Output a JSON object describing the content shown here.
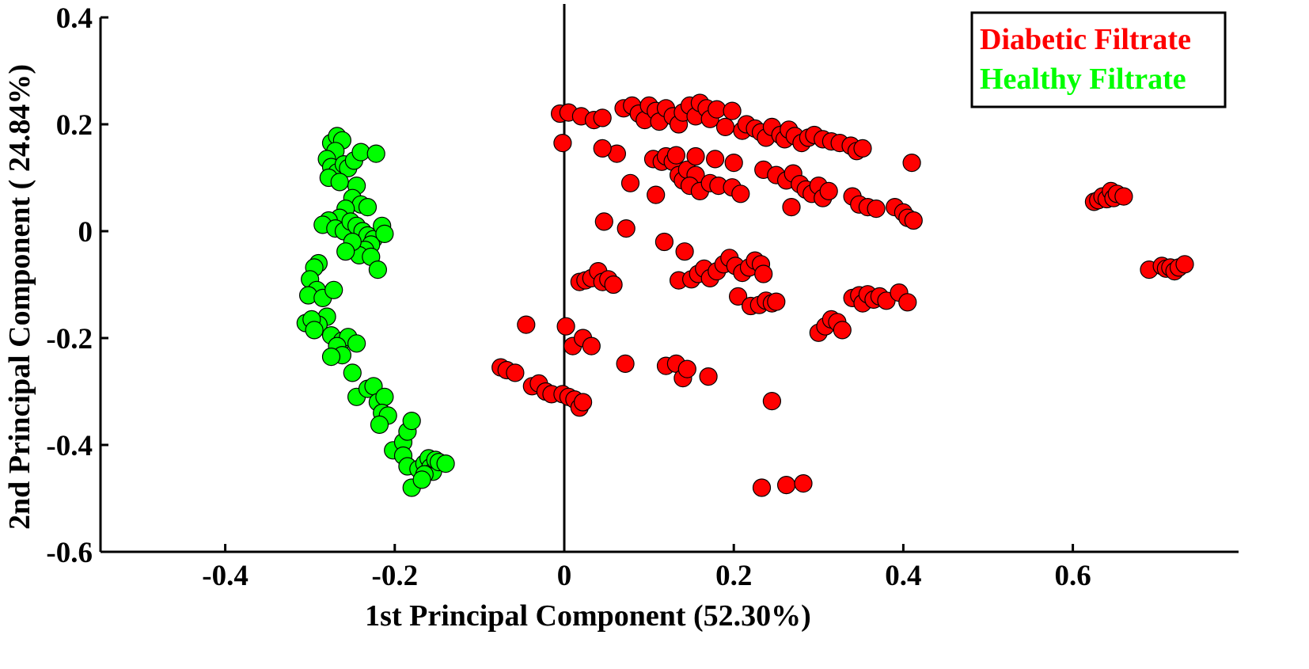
{
  "chart_data": {
    "type": "scatter",
    "xlabel": "1st Principal Component (52.30%)",
    "ylabel": "2nd Principal Component ( 24.84%)",
    "xlim": [
      -0.53,
      0.79
    ],
    "ylim": [
      -0.6,
      0.4
    ],
    "xticks": [
      -0.4,
      -0.2,
      0,
      0.2,
      0.4,
      0.6
    ],
    "xtick_labels": [
      "-0.4",
      "-0.2",
      "0",
      "0.2",
      "0.4",
      "0.6"
    ],
    "yticks": [
      0.4,
      0.2,
      0,
      -0.2,
      -0.4,
      -0.6
    ],
    "ytick_labels": [
      "0.4",
      "0.2",
      "0",
      "-0.2",
      "-0.4",
      "-0.6"
    ],
    "grid": false,
    "zero_line_x": 0,
    "legend_position": "top-right",
    "series": [
      {
        "name": "Diabetic Filtrate",
        "color": "#ff0000",
        "points": [
          [
            -0.005,
            0.22
          ],
          [
            0.005,
            0.222
          ],
          [
            0.02,
            0.215
          ],
          [
            0.035,
            0.208
          ],
          [
            0.045,
            0.212
          ],
          [
            0.07,
            0.23
          ],
          [
            0.08,
            0.235
          ],
          [
            0.088,
            0.22
          ],
          [
            0.095,
            0.208
          ],
          [
            0.1,
            0.235
          ],
          [
            0.108,
            0.225
          ],
          [
            0.112,
            0.205
          ],
          [
            0.12,
            0.23
          ],
          [
            0.128,
            0.215
          ],
          [
            0.135,
            0.2
          ],
          [
            0.14,
            0.222
          ],
          [
            0.148,
            0.235
          ],
          [
            0.155,
            0.215
          ],
          [
            0.16,
            0.24
          ],
          [
            0.168,
            0.23
          ],
          [
            0.172,
            0.21
          ],
          [
            0.18,
            0.228
          ],
          [
            0.19,
            0.195
          ],
          [
            0.198,
            0.225
          ],
          [
            0.21,
            0.188
          ],
          [
            0.215,
            0.2
          ],
          [
            0.225,
            0.192
          ],
          [
            0.232,
            0.185
          ],
          [
            0.238,
            0.175
          ],
          [
            0.245,
            0.195
          ],
          [
            0.255,
            0.18
          ],
          [
            0.26,
            0.172
          ],
          [
            0.265,
            0.19
          ],
          [
            0.272,
            0.178
          ],
          [
            0.28,
            0.165
          ],
          [
            0.288,
            0.175
          ],
          [
            0.295,
            0.18
          ],
          [
            0.305,
            0.172
          ],
          [
            0.315,
            0.168
          ],
          [
            0.325,
            0.165
          ],
          [
            0.338,
            0.16
          ],
          [
            0.345,
            0.15
          ],
          [
            0.352,
            0.155
          ],
          [
            0.062,
            0.145
          ],
          [
            -0.002,
            0.165
          ],
          [
            0.045,
            0.155
          ],
          [
            0.105,
            0.135
          ],
          [
            0.115,
            0.13
          ],
          [
            0.12,
            0.14
          ],
          [
            0.128,
            0.13
          ],
          [
            0.135,
            0.105
          ],
          [
            0.14,
            0.095
          ],
          [
            0.145,
            0.115
          ],
          [
            0.155,
            0.105
          ],
          [
            0.148,
            0.085
          ],
          [
            0.16,
            0.075
          ],
          [
            0.172,
            0.09
          ],
          [
            0.182,
            0.085
          ],
          [
            0.198,
            0.082
          ],
          [
            0.208,
            0.07
          ],
          [
            0.178,
            0.135
          ],
          [
            0.155,
            0.14
          ],
          [
            0.132,
            0.142
          ],
          [
            0.2,
            0.128
          ],
          [
            0.078,
            0.09
          ],
          [
            0.108,
            0.068
          ],
          [
            0.235,
            0.115
          ],
          [
            0.25,
            0.105
          ],
          [
            0.262,
            0.095
          ],
          [
            0.27,
            0.108
          ],
          [
            0.278,
            0.088
          ],
          [
            0.285,
            0.078
          ],
          [
            0.292,
            0.07
          ],
          [
            0.3,
            0.085
          ],
          [
            0.305,
            0.062
          ],
          [
            0.312,
            0.075
          ],
          [
            0.268,
            0.045
          ],
          [
            0.34,
            0.065
          ],
          [
            0.348,
            0.05
          ],
          [
            0.358,
            0.045
          ],
          [
            0.368,
            0.042
          ],
          [
            0.39,
            0.045
          ],
          [
            0.4,
            0.035
          ],
          [
            0.405,
            0.025
          ],
          [
            0.412,
            0.02
          ],
          [
            0.41,
            0.128
          ],
          [
            0.047,
            0.018
          ],
          [
            0.073,
            0.005
          ],
          [
            0.118,
            -0.02
          ],
          [
            0.142,
            -0.038
          ],
          [
            0.018,
            -0.095
          ],
          [
            0.025,
            -0.092
          ],
          [
            0.032,
            -0.088
          ],
          [
            0.04,
            -0.075
          ],
          [
            0.045,
            -0.095
          ],
          [
            0.052,
            -0.09
          ],
          [
            0.058,
            -0.1
          ],
          [
            0.135,
            -0.092
          ],
          [
            0.15,
            -0.09
          ],
          [
            0.158,
            -0.08
          ],
          [
            0.165,
            -0.07
          ],
          [
            0.172,
            -0.088
          ],
          [
            0.18,
            -0.075
          ],
          [
            0.188,
            -0.062
          ],
          [
            0.195,
            -0.05
          ],
          [
            0.202,
            -0.065
          ],
          [
            0.21,
            -0.078
          ],
          [
            0.218,
            -0.068
          ],
          [
            0.225,
            -0.055
          ],
          [
            0.232,
            -0.062
          ],
          [
            0.235,
            -0.08
          ],
          [
            0.205,
            -0.122
          ],
          [
            0.22,
            -0.14
          ],
          [
            0.23,
            -0.138
          ],
          [
            0.238,
            -0.13
          ],
          [
            0.245,
            -0.135
          ],
          [
            0.25,
            -0.132
          ],
          [
            0.3,
            -0.19
          ],
          [
            0.308,
            -0.178
          ],
          [
            0.315,
            -0.165
          ],
          [
            0.322,
            -0.17
          ],
          [
            0.328,
            -0.185
          ],
          [
            0.34,
            -0.125
          ],
          [
            0.348,
            -0.12
          ],
          [
            0.352,
            -0.135
          ],
          [
            0.358,
            -0.118
          ],
          [
            0.365,
            -0.128
          ],
          [
            0.372,
            -0.122
          ],
          [
            0.38,
            -0.13
          ],
          [
            0.395,
            -0.115
          ],
          [
            0.405,
            -0.133
          ],
          [
            -0.075,
            -0.255
          ],
          [
            -0.068,
            -0.26
          ],
          [
            -0.058,
            -0.265
          ],
          [
            -0.045,
            -0.175
          ],
          [
            -0.038,
            -0.29
          ],
          [
            -0.03,
            -0.285
          ],
          [
            -0.022,
            -0.3
          ],
          [
            -0.015,
            -0.305
          ],
          [
            -0.002,
            -0.305
          ],
          [
            0.005,
            -0.31
          ],
          [
            0.012,
            -0.315
          ],
          [
            0.018,
            -0.33
          ],
          [
            0.022,
            -0.32
          ],
          [
            0.002,
            -0.178
          ],
          [
            0.01,
            -0.215
          ],
          [
            0.022,
            -0.2
          ],
          [
            0.032,
            -0.215
          ],
          [
            0.072,
            -0.248
          ],
          [
            0.12,
            -0.252
          ],
          [
            0.132,
            -0.248
          ],
          [
            0.14,
            -0.275
          ],
          [
            0.145,
            -0.258
          ],
          [
            0.17,
            -0.272
          ],
          [
            0.245,
            -0.318
          ],
          [
            0.233,
            -0.48
          ],
          [
            0.262,
            -0.475
          ],
          [
            0.282,
            -0.472
          ],
          [
            0.625,
            0.055
          ],
          [
            0.63,
            0.058
          ],
          [
            0.635,
            0.065
          ],
          [
            0.64,
            0.06
          ],
          [
            0.645,
            0.075
          ],
          [
            0.648,
            0.062
          ],
          [
            0.652,
            0.07
          ],
          [
            0.66,
            0.065
          ],
          [
            0.69,
            -0.072
          ],
          [
            0.705,
            -0.065
          ],
          [
            0.71,
            -0.07
          ],
          [
            0.715,
            -0.068
          ],
          [
            0.72,
            -0.075
          ],
          [
            0.725,
            -0.068
          ],
          [
            0.732,
            -0.062
          ]
        ]
      },
      {
        "name": "Healthy Filtrate",
        "color": "#00ff00",
        "points": [
          [
            -0.275,
            0.165
          ],
          [
            -0.268,
            0.178
          ],
          [
            -0.262,
            0.17
          ],
          [
            -0.27,
            0.15
          ],
          [
            -0.28,
            0.135
          ],
          [
            -0.275,
            0.12
          ],
          [
            -0.268,
            0.11
          ],
          [
            -0.26,
            0.125
          ],
          [
            -0.255,
            0.118
          ],
          [
            -0.248,
            0.132
          ],
          [
            -0.24,
            0.148
          ],
          [
            -0.222,
            0.145
          ],
          [
            -0.278,
            0.1
          ],
          [
            -0.265,
            0.092
          ],
          [
            -0.245,
            0.085
          ],
          [
            -0.25,
            0.062
          ],
          [
            -0.24,
            0.05
          ],
          [
            -0.232,
            0.045
          ],
          [
            -0.258,
            0.042
          ],
          [
            -0.265,
            0.025
          ],
          [
            -0.278,
            0.02
          ],
          [
            -0.285,
            0.012
          ],
          [
            -0.27,
            0.005
          ],
          [
            -0.26,
            0.0
          ],
          [
            -0.252,
            0.018
          ],
          [
            -0.245,
            0.01
          ],
          [
            -0.238,
            0.0
          ],
          [
            -0.232,
            -0.008
          ],
          [
            -0.225,
            -0.015
          ],
          [
            -0.228,
            -0.025
          ],
          [
            -0.235,
            -0.035
          ],
          [
            -0.242,
            -0.045
          ],
          [
            -0.25,
            -0.02
          ],
          [
            -0.258,
            -0.038
          ],
          [
            -0.215,
            0.01
          ],
          [
            -0.212,
            -0.005
          ],
          [
            -0.228,
            -0.048
          ],
          [
            -0.22,
            -0.072
          ],
          [
            -0.29,
            -0.06
          ],
          [
            -0.295,
            -0.068
          ],
          [
            -0.3,
            -0.09
          ],
          [
            -0.292,
            -0.11
          ],
          [
            -0.302,
            -0.12
          ],
          [
            -0.285,
            -0.125
          ],
          [
            -0.272,
            -0.11
          ],
          [
            -0.28,
            -0.16
          ],
          [
            -0.29,
            -0.175
          ],
          [
            -0.305,
            -0.172
          ],
          [
            -0.298,
            -0.165
          ],
          [
            -0.295,
            -0.185
          ],
          [
            -0.275,
            -0.195
          ],
          [
            -0.262,
            -0.205
          ],
          [
            -0.255,
            -0.198
          ],
          [
            -0.245,
            -0.21
          ],
          [
            -0.268,
            -0.215
          ],
          [
            -0.262,
            -0.232
          ],
          [
            -0.275,
            -0.235
          ],
          [
            -0.25,
            -0.265
          ],
          [
            -0.245,
            -0.31
          ],
          [
            -0.232,
            -0.295
          ],
          [
            -0.225,
            -0.29
          ],
          [
            -0.22,
            -0.32
          ],
          [
            -0.212,
            -0.31
          ],
          [
            -0.215,
            -0.34
          ],
          [
            -0.208,
            -0.345
          ],
          [
            -0.218,
            -0.362
          ],
          [
            -0.202,
            -0.41
          ],
          [
            -0.19,
            -0.395
          ],
          [
            -0.185,
            -0.375
          ],
          [
            -0.18,
            -0.355
          ],
          [
            -0.19,
            -0.42
          ],
          [
            -0.185,
            -0.44
          ],
          [
            -0.18,
            -0.48
          ],
          [
            -0.172,
            -0.445
          ],
          [
            -0.165,
            -0.435
          ],
          [
            -0.16,
            -0.425
          ],
          [
            -0.158,
            -0.442
          ],
          [
            -0.155,
            -0.45
          ],
          [
            -0.165,
            -0.455
          ],
          [
            -0.168,
            -0.465
          ],
          [
            -0.152,
            -0.428
          ],
          [
            -0.148,
            -0.432
          ],
          [
            -0.14,
            -0.435
          ]
        ]
      }
    ]
  }
}
